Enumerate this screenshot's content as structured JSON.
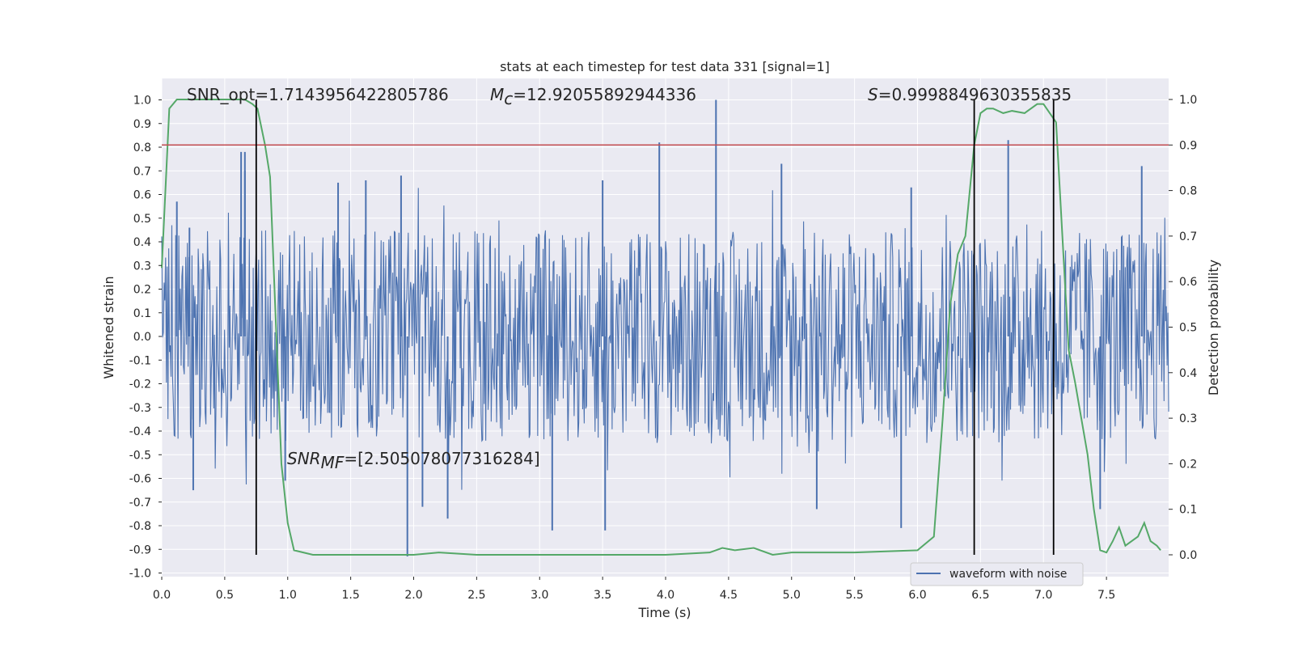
{
  "chart_data": {
    "type": "line",
    "title": "stats at each timestep for test data 331 [signal=1]",
    "xlabel": "Time (s)",
    "ylabel_left": "Whitened strain",
    "ylabel_right": "Detection probability",
    "xlim": [
      0.0,
      8.0
    ],
    "ylim_left": [
      -1.05,
      1.05
    ],
    "ylim_right": [
      -0.05,
      1.05
    ],
    "x_ticks": [
      "0.0",
      "0.5",
      "1.0",
      "1.5",
      "2.0",
      "2.5",
      "3.0",
      "3.5",
      "4.0",
      "4.5",
      "5.0",
      "5.5",
      "6.0",
      "6.5",
      "7.0",
      "7.5"
    ],
    "y_ticks_left": [
      "1.0",
      "0.9",
      "0.8",
      "0.7",
      "0.6",
      "0.5",
      "0.4",
      "0.3",
      "0.2",
      "0.1",
      "0.0",
      "-0.1",
      "-0.2",
      "-0.3",
      "-0.4",
      "-0.5",
      "-0.6",
      "-0.7",
      "-0.8",
      "-0.9",
      "-1.0"
    ],
    "y_ticks_right": [
      "1.0",
      "0.9",
      "0.8",
      "0.7",
      "0.6",
      "0.5",
      "0.4",
      "0.3",
      "0.2",
      "0.1",
      "0.0"
    ],
    "grid": true,
    "legend": {
      "position": "lower-right",
      "entries": [
        "waveform with noise"
      ]
    },
    "annotations": {
      "snr_opt": "SNR_opt=1.7143956422805786",
      "mc_symbol": "M",
      "mc_sub": "c",
      "mc_value": "=12.92055892944336",
      "s_symbol": "S",
      "s_value": "=0.9998849630355835",
      "snrmf_symbol": "SNR",
      "snrmf_sub": "MF",
      "snrmf_value": "=[2.505078077316284]"
    },
    "threshold": {
      "name": "detection threshold",
      "right_axis_value": 0.9,
      "color": "#c44e52"
    },
    "vertical_lines": [
      0.75,
      6.45,
      7.08
    ],
    "waveform_with_noise": {
      "color": "#4c72b0",
      "envelope_max_abs": 0.45,
      "notable_peaks": [
        {
          "t": 0.12,
          "v": 0.57
        },
        {
          "t": 0.22,
          "v": 0.46
        },
        {
          "t": 0.66,
          "v": 0.7
        },
        {
          "t": 0.63,
          "v": 0.78
        },
        {
          "t": 0.66,
          "v": 0.78
        },
        {
          "t": 1.4,
          "v": 0.65
        },
        {
          "t": 1.62,
          "v": 0.66
        },
        {
          "t": 1.9,
          "v": 0.68
        },
        {
          "t": 3.5,
          "v": 0.66
        },
        {
          "t": 3.95,
          "v": 0.82
        },
        {
          "t": 4.4,
          "v": 1.0
        },
        {
          "t": 4.92,
          "v": 0.73
        },
        {
          "t": 5.95,
          "v": 0.63
        },
        {
          "t": 6.72,
          "v": 0.83
        },
        {
          "t": 7.78,
          "v": 0.72
        },
        {
          "t": 1.95,
          "v": -0.93
        },
        {
          "t": 2.07,
          "v": -0.72
        },
        {
          "t": 2.27,
          "v": -0.77
        },
        {
          "t": 3.1,
          "v": -0.82
        },
        {
          "t": 3.52,
          "v": -0.82
        },
        {
          "t": 5.2,
          "v": -0.73
        },
        {
          "t": 5.87,
          "v": -0.81
        },
        {
          "t": 7.45,
          "v": -0.73
        },
        {
          "t": 0.25,
          "v": -0.65
        },
        {
          "t": 0.98,
          "v": -0.61
        }
      ]
    },
    "detection_probability": {
      "color": "#55a868",
      "x": [
        0.0,
        0.06,
        0.12,
        0.25,
        0.5,
        0.66,
        0.72,
        0.76,
        0.82,
        0.86,
        0.9,
        0.95,
        1.0,
        1.05,
        1.2,
        1.5,
        2.0,
        2.2,
        2.5,
        3.0,
        3.5,
        4.0,
        4.35,
        4.45,
        4.55,
        4.7,
        4.85,
        5.0,
        5.5,
        6.0,
        6.13,
        6.2,
        6.26,
        6.32,
        6.38,
        6.45,
        6.5,
        6.55,
        6.6,
        6.68,
        6.75,
        6.85,
        6.95,
        7.0,
        7.05,
        7.1,
        7.15,
        7.2,
        7.25,
        7.3,
        7.35,
        7.4,
        7.45,
        7.5,
        7.55,
        7.6,
        7.65,
        7.7,
        7.75,
        7.8,
        7.85,
        7.9,
        7.93
      ],
      "y": [
        0.63,
        0.98,
        1.0,
        1.0,
        1.0,
        1.0,
        0.99,
        0.98,
        0.9,
        0.83,
        0.55,
        0.2,
        0.07,
        0.01,
        0.0,
        0.0,
        0.0,
        0.005,
        0.0,
        0.0,
        0.0,
        0.0,
        0.005,
        0.015,
        0.01,
        0.015,
        0.0,
        0.005,
        0.005,
        0.01,
        0.04,
        0.3,
        0.55,
        0.66,
        0.7,
        0.9,
        0.97,
        0.98,
        0.98,
        0.97,
        0.975,
        0.97,
        0.99,
        0.99,
        0.97,
        0.95,
        0.7,
        0.45,
        0.38,
        0.3,
        0.22,
        0.1,
        0.01,
        0.005,
        0.03,
        0.06,
        0.02,
        0.03,
        0.04,
        0.07,
        0.03,
        0.02,
        0.01
      ]
    }
  }
}
